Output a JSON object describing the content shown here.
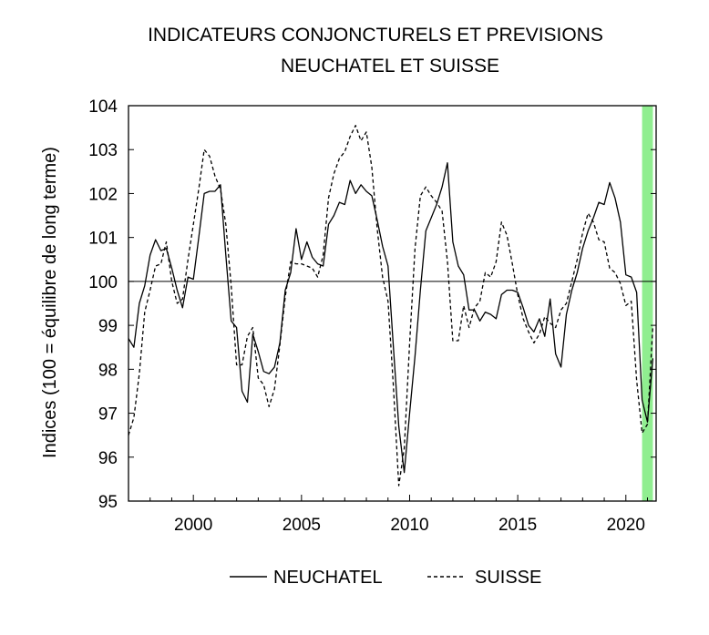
{
  "chart_data": {
    "type": "line",
    "title": [
      "INDICATEURS CONJONCTURELS ET PREVISIONS",
      "NEUCHATEL ET SUISSE"
    ],
    "ylabel": "Indices (100 = équilibre de long terme)",
    "xlabel": "",
    "xlim": [
      1997.0,
      2021.4
    ],
    "ylim": [
      95,
      104
    ],
    "yticks": [
      95,
      96,
      97,
      98,
      99,
      100,
      101,
      102,
      103,
      104
    ],
    "xticks": [
      2000,
      2005,
      2010,
      2015,
      2020
    ],
    "reference_line": 100,
    "grid": false,
    "legend_position": "bottom",
    "shaded_region": {
      "from": 2020.75,
      "to": 2021.25,
      "color": "#90ee90"
    },
    "series": [
      {
        "name": "NEUCHATEL",
        "style": "solid",
        "points": [
          [
            1997.0,
            98.7
          ],
          [
            1997.25,
            98.5
          ],
          [
            1997.5,
            99.5
          ],
          [
            1997.75,
            99.9
          ],
          [
            1998.0,
            100.6
          ],
          [
            1998.25,
            100.95
          ],
          [
            1998.5,
            100.7
          ],
          [
            1998.75,
            100.75
          ],
          [
            1999.0,
            100.3
          ],
          [
            1999.25,
            99.8
          ],
          [
            1999.5,
            99.4
          ],
          [
            1999.75,
            100.1
          ],
          [
            2000.0,
            100.05
          ],
          [
            2000.25,
            101.0
          ],
          [
            2000.5,
            102.0
          ],
          [
            2000.75,
            102.05
          ],
          [
            2001.0,
            102.05
          ],
          [
            2001.25,
            102.2
          ],
          [
            2001.5,
            100.6
          ],
          [
            2001.75,
            99.1
          ],
          [
            2002.0,
            98.95
          ],
          [
            2002.25,
            97.5
          ],
          [
            2002.5,
            97.25
          ],
          [
            2002.75,
            98.8
          ],
          [
            2003.0,
            98.4
          ],
          [
            2003.25,
            97.95
          ],
          [
            2003.5,
            97.9
          ],
          [
            2003.75,
            98.05
          ],
          [
            2004.0,
            98.6
          ],
          [
            2004.25,
            99.8
          ],
          [
            2004.5,
            100.2
          ],
          [
            2004.75,
            101.2
          ],
          [
            2005.0,
            100.5
          ],
          [
            2005.25,
            100.9
          ],
          [
            2005.5,
            100.55
          ],
          [
            2005.75,
            100.4
          ],
          [
            2006.0,
            100.35
          ],
          [
            2006.25,
            101.3
          ],
          [
            2006.5,
            101.5
          ],
          [
            2006.75,
            101.8
          ],
          [
            2007.0,
            101.75
          ],
          [
            2007.25,
            102.3
          ],
          [
            2007.5,
            102.0
          ],
          [
            2007.75,
            102.2
          ],
          [
            2008.0,
            102.05
          ],
          [
            2008.25,
            101.95
          ],
          [
            2008.5,
            101.4
          ],
          [
            2008.75,
            100.8
          ],
          [
            2009.0,
            100.35
          ],
          [
            2009.25,
            98.5
          ],
          [
            2009.5,
            96.7
          ],
          [
            2009.75,
            95.65
          ],
          [
            2010.0,
            97.0
          ],
          [
            2010.25,
            98.3
          ],
          [
            2010.5,
            99.8
          ],
          [
            2010.75,
            101.15
          ],
          [
            2011.0,
            101.45
          ],
          [
            2011.25,
            101.75
          ],
          [
            2011.5,
            102.15
          ],
          [
            2011.75,
            102.7
          ],
          [
            2012.0,
            100.9
          ],
          [
            2012.25,
            100.35
          ],
          [
            2012.5,
            100.15
          ],
          [
            2012.75,
            99.35
          ],
          [
            2013.0,
            99.35
          ],
          [
            2013.25,
            99.1
          ],
          [
            2013.5,
            99.3
          ],
          [
            2013.75,
            99.25
          ],
          [
            2014.0,
            99.15
          ],
          [
            2014.25,
            99.7
          ],
          [
            2014.5,
            99.8
          ],
          [
            2014.75,
            99.8
          ],
          [
            2015.0,
            99.75
          ],
          [
            2015.25,
            99.4
          ],
          [
            2015.5,
            99.0
          ],
          [
            2015.75,
            98.85
          ],
          [
            2016.0,
            99.15
          ],
          [
            2016.25,
            98.75
          ],
          [
            2016.5,
            99.6
          ],
          [
            2016.75,
            98.35
          ],
          [
            2017.0,
            98.05
          ],
          [
            2017.25,
            99.25
          ],
          [
            2017.5,
            99.8
          ],
          [
            2017.75,
            100.2
          ],
          [
            2018.0,
            100.75
          ],
          [
            2018.25,
            101.15
          ],
          [
            2018.5,
            101.45
          ],
          [
            2018.75,
            101.8
          ],
          [
            2019.0,
            101.75
          ],
          [
            2019.25,
            102.25
          ],
          [
            2019.5,
            101.9
          ],
          [
            2019.75,
            101.35
          ],
          [
            2020.0,
            100.15
          ],
          [
            2020.25,
            100.1
          ],
          [
            2020.5,
            99.75
          ],
          [
            2020.75,
            97.3
          ],
          [
            2021.0,
            96.8
          ],
          [
            2021.25,
            98.25
          ]
        ]
      },
      {
        "name": "SUISSE",
        "style": "dashed",
        "points": [
          [
            1997.0,
            96.5
          ],
          [
            1997.25,
            96.9
          ],
          [
            1997.5,
            97.9
          ],
          [
            1997.75,
            99.3
          ],
          [
            1998.0,
            99.8
          ],
          [
            1998.25,
            100.35
          ],
          [
            1998.5,
            100.4
          ],
          [
            1998.75,
            100.9
          ],
          [
            1999.0,
            100.0
          ],
          [
            1999.25,
            99.5
          ],
          [
            1999.5,
            99.6
          ],
          [
            1999.75,
            100.5
          ],
          [
            2000.0,
            101.3
          ],
          [
            2000.25,
            102.1
          ],
          [
            2000.5,
            103.0
          ],
          [
            2000.75,
            102.85
          ],
          [
            2001.0,
            102.4
          ],
          [
            2001.25,
            102.1
          ],
          [
            2001.5,
            101.3
          ],
          [
            2001.75,
            99.9
          ],
          [
            2002.0,
            98.1
          ],
          [
            2002.25,
            98.1
          ],
          [
            2002.5,
            98.75
          ],
          [
            2002.75,
            98.95
          ],
          [
            2003.0,
            97.8
          ],
          [
            2003.25,
            97.65
          ],
          [
            2003.5,
            97.15
          ],
          [
            2003.75,
            97.55
          ],
          [
            2004.0,
            98.55
          ],
          [
            2004.25,
            99.65
          ],
          [
            2004.5,
            100.45
          ],
          [
            2004.75,
            100.4
          ],
          [
            2005.0,
            100.4
          ],
          [
            2005.25,
            100.35
          ],
          [
            2005.5,
            100.3
          ],
          [
            2005.75,
            100.1
          ],
          [
            2006.0,
            100.6
          ],
          [
            2006.25,
            101.9
          ],
          [
            2006.5,
            102.45
          ],
          [
            2006.75,
            102.8
          ],
          [
            2007.0,
            102.95
          ],
          [
            2007.25,
            103.3
          ],
          [
            2007.5,
            103.55
          ],
          [
            2007.75,
            103.2
          ],
          [
            2008.0,
            103.4
          ],
          [
            2008.25,
            102.6
          ],
          [
            2008.5,
            101.2
          ],
          [
            2008.75,
            100.1
          ],
          [
            2009.0,
            99.55
          ],
          [
            2009.25,
            97.6
          ],
          [
            2009.5,
            95.35
          ],
          [
            2009.75,
            96.2
          ],
          [
            2010.0,
            98.6
          ],
          [
            2010.25,
            100.75
          ],
          [
            2010.5,
            101.95
          ],
          [
            2010.75,
            102.15
          ],
          [
            2011.0,
            101.95
          ],
          [
            2011.25,
            101.8
          ],
          [
            2011.5,
            101.6
          ],
          [
            2011.75,
            100.45
          ],
          [
            2012.0,
            98.65
          ],
          [
            2012.25,
            98.65
          ],
          [
            2012.5,
            99.45
          ],
          [
            2012.75,
            98.95
          ],
          [
            2013.0,
            99.4
          ],
          [
            2013.25,
            99.55
          ],
          [
            2013.5,
            100.2
          ],
          [
            2013.75,
            100.1
          ],
          [
            2014.0,
            100.45
          ],
          [
            2014.25,
            101.35
          ],
          [
            2014.5,
            101.05
          ],
          [
            2014.75,
            100.4
          ],
          [
            2015.0,
            99.7
          ],
          [
            2015.25,
            99.15
          ],
          [
            2015.5,
            98.85
          ],
          [
            2015.75,
            98.6
          ],
          [
            2016.0,
            98.8
          ],
          [
            2016.25,
            99.2
          ],
          [
            2016.5,
            99.05
          ],
          [
            2016.75,
            98.95
          ],
          [
            2017.0,
            99.35
          ],
          [
            2017.25,
            99.5
          ],
          [
            2017.5,
            100.0
          ],
          [
            2017.75,
            100.5
          ],
          [
            2018.0,
            101.1
          ],
          [
            2018.25,
            101.55
          ],
          [
            2018.5,
            101.35
          ],
          [
            2018.75,
            100.95
          ],
          [
            2019.0,
            100.9
          ],
          [
            2019.25,
            100.3
          ],
          [
            2019.5,
            100.2
          ],
          [
            2019.75,
            99.95
          ],
          [
            2020.0,
            99.45
          ],
          [
            2020.25,
            99.55
          ],
          [
            2020.5,
            97.75
          ],
          [
            2020.75,
            96.55
          ],
          [
            2021.0,
            96.75
          ],
          [
            2021.25,
            99.0
          ]
        ]
      }
    ]
  }
}
